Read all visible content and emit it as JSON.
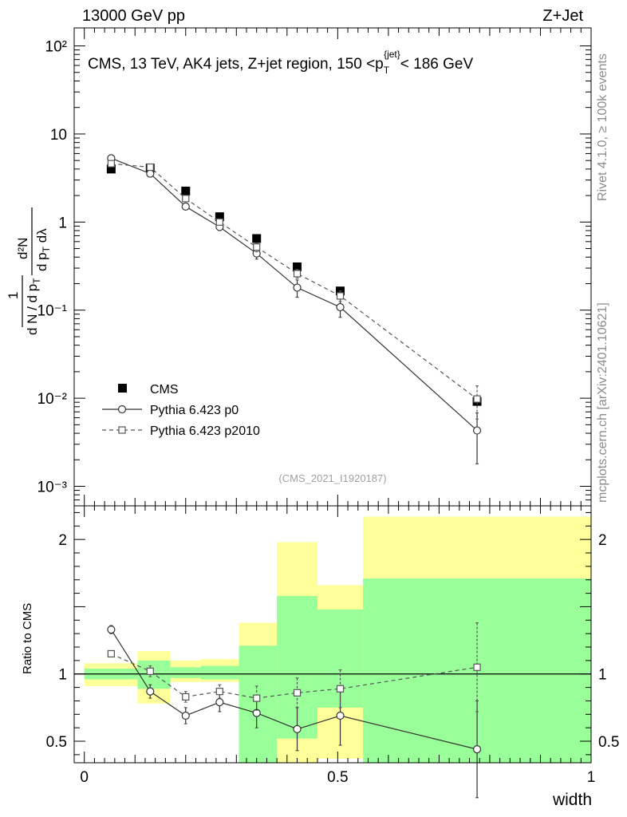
{
  "header": {
    "energy_label": "13000 GeV pp",
    "process_label": "Z+Jet"
  },
  "side_labels": {
    "rivet": "Rivet 4.1.0, ≥ 100k events",
    "mcplots": "mcplots.cern.ch [arXiv:2401.10621]"
  },
  "chart_data": [
    {
      "type": "scatter",
      "title": "CMS, 13 TeV, AK4 jets, Z+jet region, 150 <p_T^{jet}< 186 GeV",
      "analysis_id": "(CMS_2021_I1920187)",
      "xlabel": "width",
      "ylabel": "1/(dN/dp_T) d²N/(dp_T dλ)",
      "yscale": "log",
      "ylim": [
        0.0006,
        160
      ],
      "xlim": [
        -0.02,
        1.0
      ],
      "yticks": [
        {
          "value": 0.001,
          "label": "10⁻³"
        },
        {
          "value": 0.01,
          "label": "10⁻²"
        },
        {
          "value": 0.1,
          "label": "10⁻¹"
        },
        {
          "value": 1,
          "label": "1"
        },
        {
          "value": 10,
          "label": "10"
        },
        {
          "value": 100,
          "label": "10²"
        }
      ],
      "legend_position": "bottom-left",
      "series": [
        {
          "name": "CMS",
          "style": "black-filled-square",
          "x": [
            0.053,
            0.13,
            0.2,
            0.267,
            0.34,
            0.42,
            0.505,
            0.775
          ],
          "y": [
            4.0,
            4.1,
            2.25,
            1.15,
            0.65,
            0.31,
            0.165,
            0.0092
          ]
        },
        {
          "name": "Pythia 6.423 p0",
          "style": "solid-open-circle",
          "x": [
            0.053,
            0.13,
            0.2,
            0.267,
            0.34,
            0.42,
            0.505,
            0.775
          ],
          "y": [
            5.3,
            3.55,
            1.5,
            0.88,
            0.44,
            0.18,
            0.108,
            0.0043
          ],
          "yerr": [
            0.2,
            0.15,
            0.12,
            0.08,
            0.06,
            0.04,
            0.025,
            0.0025
          ]
        },
        {
          "name": "Pythia 6.423 p2010",
          "style": "dashed-open-square",
          "x": [
            0.053,
            0.13,
            0.2,
            0.267,
            0.34,
            0.42,
            0.505,
            0.775
          ],
          "y": [
            4.6,
            4.2,
            1.85,
            1.0,
            0.52,
            0.26,
            0.145,
            0.0098
          ],
          "yerr": [
            0.15,
            0.15,
            0.12,
            0.06,
            0.06,
            0.03,
            0.02,
            0.004
          ]
        }
      ]
    },
    {
      "type": "scatter",
      "ylabel": "Ratio to CMS",
      "xlabel": "width",
      "ylim": [
        0.34,
        2.25
      ],
      "xlim": [
        -0.02,
        1.0
      ],
      "yticks": [
        {
          "value": 0.5,
          "label": "0.5"
        },
        {
          "value": 1,
          "label": "1"
        },
        {
          "value": 2,
          "label": "2"
        }
      ],
      "xticks": [
        {
          "value": 0,
          "label": "0"
        },
        {
          "value": 0.5,
          "label": "0.5"
        },
        {
          "value": 1,
          "label": "1"
        }
      ],
      "bins": {
        "edges": [
          0,
          0.105,
          0.17,
          0.23,
          0.305,
          0.38,
          0.46,
          0.55,
          1.0
        ],
        "yellow_band": [
          [
            0.91,
            1.08
          ],
          [
            0.78,
            1.17
          ],
          [
            0.94,
            1.1
          ],
          [
            0.94,
            1.11
          ],
          [
            0.34,
            1.38
          ],
          [
            0.34,
            1.98
          ],
          [
            0.37,
            1.66
          ],
          [
            0.34,
            2.17
          ]
        ],
        "green_band": [
          [
            0.96,
            1.04
          ],
          [
            0.89,
            1.1
          ],
          [
            0.97,
            1.05
          ],
          [
            0.96,
            1.06
          ],
          [
            0.34,
            1.21
          ],
          [
            0.52,
            1.58
          ],
          [
            0.75,
            1.48
          ],
          [
            0.34,
            1.71
          ]
        ]
      },
      "reference_line": 1,
      "series": [
        {
          "name": "Pythia 6.423 p0",
          "style": "solid-open-circle",
          "x": [
            0.053,
            0.13,
            0.2,
            0.267,
            0.34,
            0.42,
            0.505,
            0.775
          ],
          "y": [
            1.33,
            0.87,
            0.69,
            0.79,
            0.71,
            0.59,
            0.69,
            0.44
          ],
          "yerr": [
            0.03,
            0.05,
            0.06,
            0.07,
            0.11,
            0.16,
            0.22,
            0.36
          ]
        },
        {
          "name": "Pythia 6.423 p2010",
          "style": "dashed-open-square",
          "x": [
            0.053,
            0.13,
            0.2,
            0.267,
            0.34,
            0.42,
            0.505,
            0.775
          ],
          "y": [
            1.15,
            1.02,
            0.83,
            0.87,
            0.82,
            0.86,
            0.89,
            1.05
          ],
          "yerr": [
            0.02,
            0.04,
            0.04,
            0.05,
            0.09,
            0.11,
            0.14,
            0.33
          ]
        }
      ]
    }
  ]
}
